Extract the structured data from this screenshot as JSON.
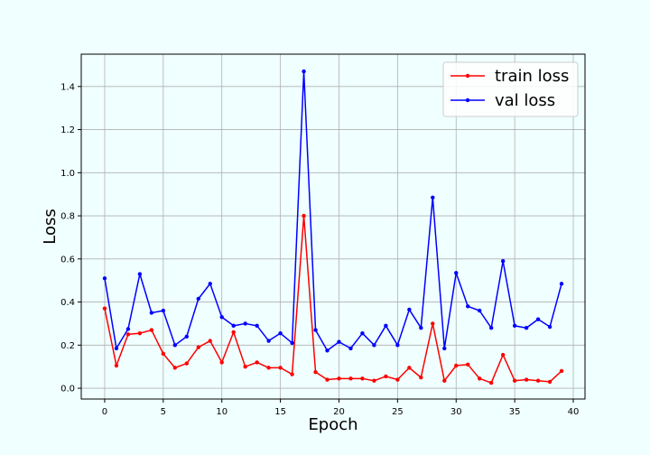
{
  "chart_data": {
    "type": "line",
    "title": "",
    "xlabel": "Epoch",
    "ylabel": "Loss",
    "xlim": [
      -2,
      41
    ],
    "ylim": [
      -0.05,
      1.55
    ],
    "xticks": [
      0,
      5,
      10,
      15,
      20,
      25,
      30,
      35,
      40
    ],
    "yticks": [
      0.0,
      0.2,
      0.4,
      0.6,
      0.8,
      1.0,
      1.2,
      1.4
    ],
    "xtick_labels": [
      "0",
      "5",
      "10",
      "15",
      "20",
      "25",
      "30",
      "35",
      "40"
    ],
    "ytick_labels": [
      "0.0",
      "0.2",
      "0.4",
      "0.6",
      "0.8",
      "1.0",
      "1.2",
      "1.4"
    ],
    "grid": true,
    "legend_position": "top-right",
    "x": [
      0,
      1,
      2,
      3,
      4,
      5,
      6,
      7,
      8,
      9,
      10,
      11,
      12,
      13,
      14,
      15,
      16,
      17,
      18,
      19,
      20,
      21,
      22,
      23,
      24,
      25,
      26,
      27,
      28,
      29,
      30,
      31,
      32,
      33,
      34,
      35,
      36,
      37,
      38,
      39
    ],
    "series": [
      {
        "name": "train loss",
        "color": "#ff0000",
        "values": [
          0.37,
          0.105,
          0.25,
          0.255,
          0.27,
          0.16,
          0.095,
          0.115,
          0.19,
          0.22,
          0.12,
          0.26,
          0.1,
          0.12,
          0.095,
          0.095,
          0.065,
          0.8,
          0.075,
          0.04,
          0.045,
          0.045,
          0.045,
          0.035,
          0.055,
          0.04,
          0.095,
          0.05,
          0.3,
          0.035,
          0.105,
          0.11,
          0.045,
          0.025,
          0.155,
          0.035,
          0.04,
          0.035,
          0.03,
          0.08
        ]
      },
      {
        "name": "val loss",
        "color": "#0000ff",
        "values": [
          0.51,
          0.185,
          0.275,
          0.53,
          0.35,
          0.36,
          0.2,
          0.24,
          0.415,
          0.485,
          0.33,
          0.29,
          0.3,
          0.29,
          0.22,
          0.255,
          0.21,
          1.47,
          0.27,
          0.175,
          0.215,
          0.185,
          0.255,
          0.2,
          0.29,
          0.2,
          0.365,
          0.28,
          0.885,
          0.185,
          0.535,
          0.38,
          0.36,
          0.28,
          0.59,
          0.29,
          0.28,
          0.32,
          0.285,
          0.485
        ]
      }
    ]
  }
}
